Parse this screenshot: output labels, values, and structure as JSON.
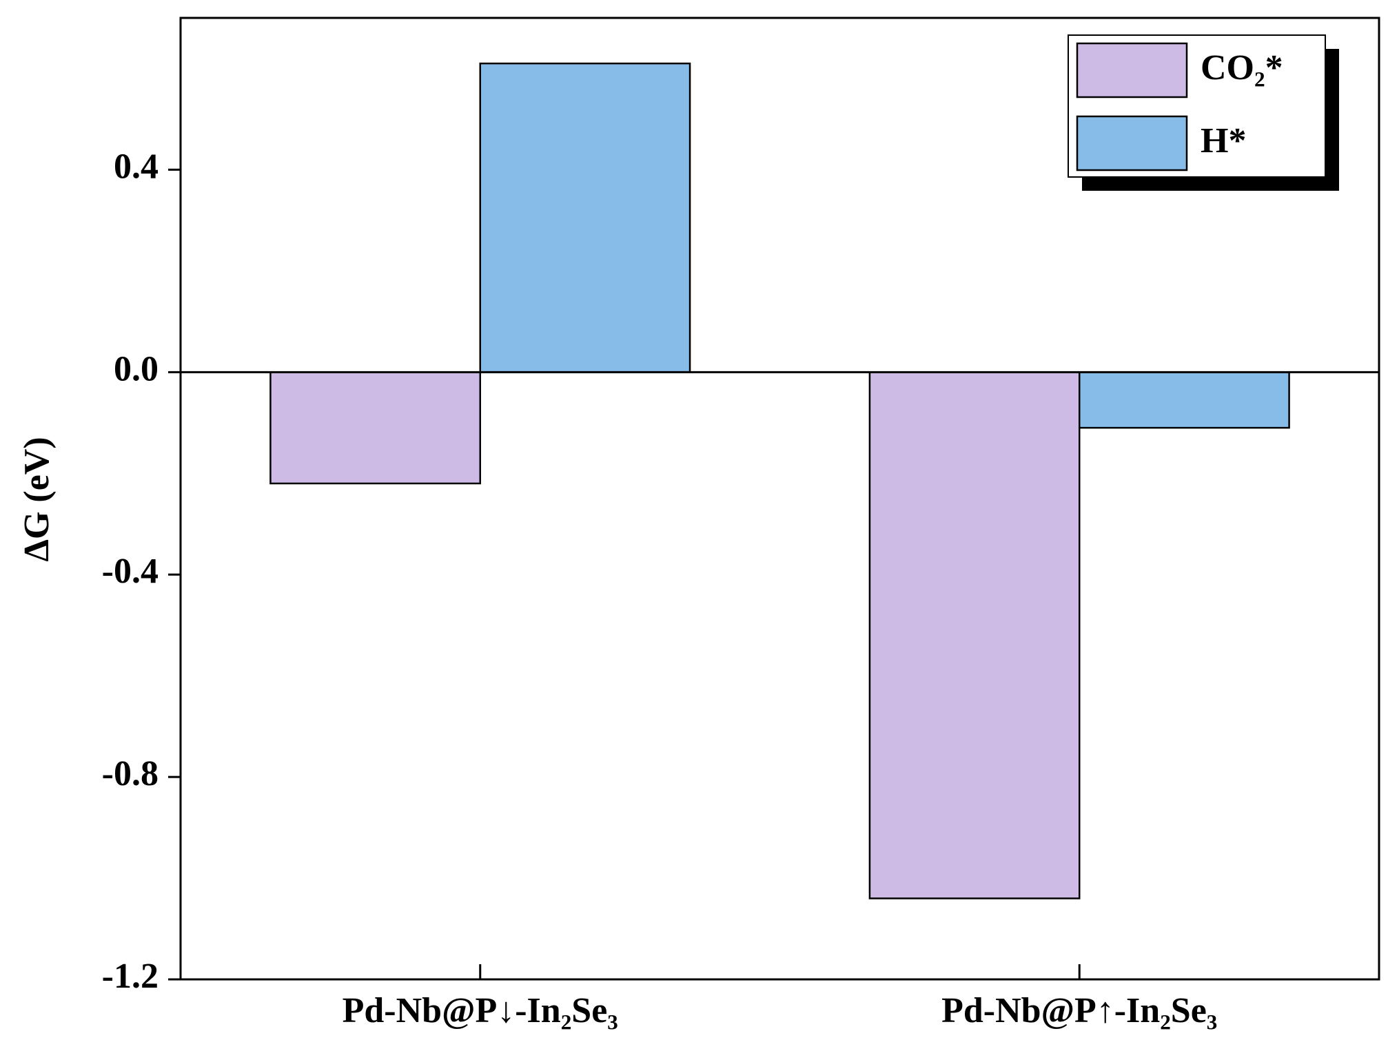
{
  "chart_data": {
    "type": "bar",
    "y_label": "ΔG (eV)",
    "categories": [
      "Pd-Nb@P↓-In₂Se₃",
      "Pd-Nb@P↑-In₂Se₃"
    ],
    "series": [
      {
        "name": "CO₂*",
        "color": "#cdbbe5",
        "values": [
          -0.22,
          -1.04
        ]
      },
      {
        "name": "H*",
        "color": "#87bce8",
        "values": [
          0.61,
          -0.11
        ]
      }
    ],
    "ylim": [
      -1.2,
      0.7
    ],
    "yticks": [
      {
        "value": -1.2,
        "label": "-1.2"
      },
      {
        "value": -0.8,
        "label": "-0.8"
      },
      {
        "value": -0.4,
        "label": "-0.4"
      },
      {
        "value": 0,
        "label": "0.0"
      },
      {
        "value": 0.4,
        "label": "0.4"
      }
    ],
    "legend_position": "upper right"
  }
}
